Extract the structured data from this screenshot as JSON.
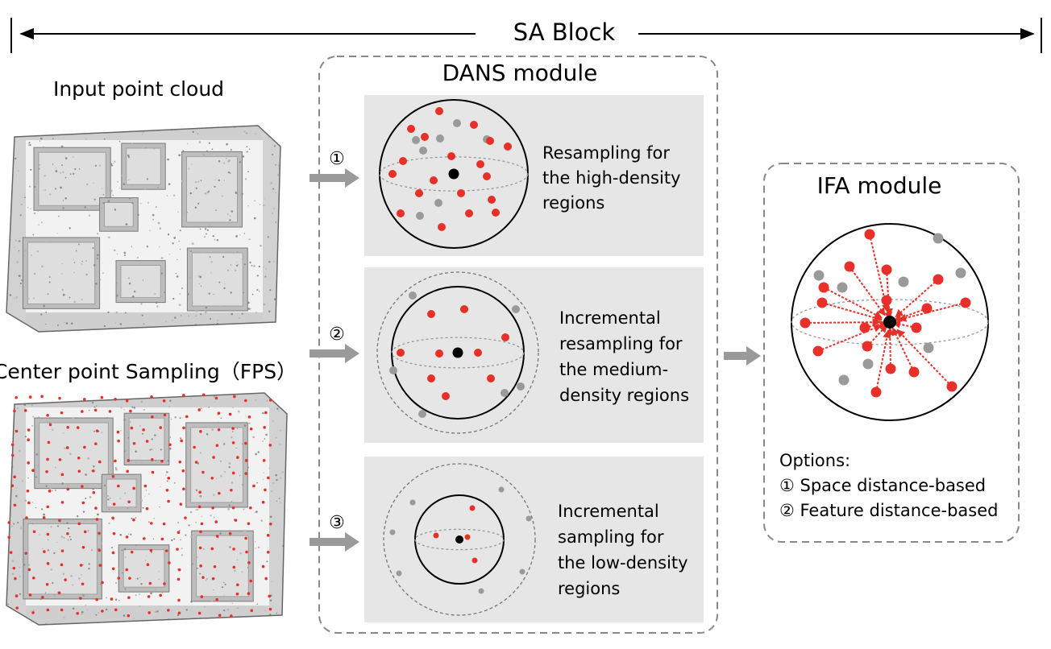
{
  "header": {
    "title": "SA Block"
  },
  "left_panel": {
    "input_label": "Input point cloud",
    "sampling_label": "Center point Sampling（FPS）"
  },
  "dans_module": {
    "title": "DANS module",
    "panels": [
      {
        "marker": "①",
        "lines": [
          "Resampling for",
          "the high-density",
          "regions"
        ]
      },
      {
        "marker": "②",
        "lines": [
          "Incremental",
          "resampling for",
          "the medium-",
          "density regions"
        ]
      },
      {
        "marker": "③",
        "lines": [
          "Incremental",
          "sampling for",
          "the low-density",
          "regions"
        ]
      }
    ]
  },
  "ifa_module": {
    "title": "IFA module",
    "options_title": "Options:",
    "options": [
      "① Space distance-based",
      "② Feature distance-based"
    ]
  },
  "colors": {
    "red": "#e8302a",
    "gray": "#9a9a9a",
    "panel": "#e6e6e6",
    "arrow": "#9a9a9a",
    "dash": "#888888"
  }
}
